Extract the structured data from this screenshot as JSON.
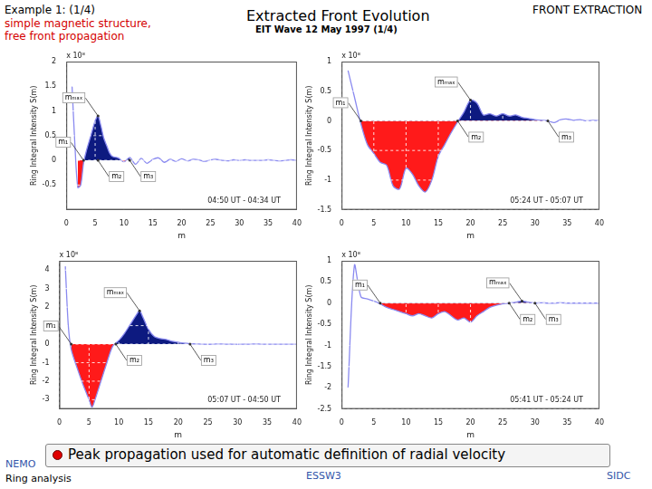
{
  "header": {
    "example": "Example 1: (1/4)",
    "subtitle_lines": [
      "simple magnetic structure,",
      "free front propagation"
    ],
    "title": "Extracted Front Evolution",
    "subtitle": "EIT Wave 12 May 1997 (1/4)",
    "section": "FRONT EXTRACTION"
  },
  "chart_data": [
    {
      "type": "line",
      "x_label": "m",
      "y_label": "Ring Integral Intensity S(m)",
      "y_multiplier": "x 10⁸",
      "time_label": "04:50 UT - 04:34 UT",
      "color": "#8a8af0",
      "grid": true,
      "x": [
        1,
        1.5,
        2,
        2.5,
        3,
        3.5,
        4,
        4.5,
        5,
        5.5,
        6,
        6.5,
        7,
        7.5,
        8,
        9,
        10,
        11,
        12,
        13,
        14,
        15,
        16,
        17,
        18,
        19,
        20,
        21,
        22,
        23,
        24,
        25,
        26,
        27,
        28,
        29,
        30,
        31,
        32,
        33,
        34,
        35,
        36,
        37,
        38,
        39,
        40
      ],
      "values": [
        1.5,
        0.3,
        -0.55,
        -0.5,
        -0.05,
        0.2,
        0.4,
        0.6,
        0.8,
        0.9,
        0.7,
        0.45,
        0.3,
        0.15,
        0.08,
        0.05,
        -0.03,
        0.06,
        -0.08,
        0.04,
        -0.06,
        0.02,
        0.05,
        -0.04,
        0.02,
        -0.02,
        0.03,
        -0.01,
        0.02,
        0.01,
        -0.02,
        0.01,
        0.02,
        0,
        -0.01,
        0.01,
        0,
        0.01,
        0,
        0,
        0,
        0.01,
        0,
        -0.01,
        0,
        0.01,
        0
      ],
      "xlim": [
        0,
        40
      ],
      "xticks": [
        0,
        5,
        10,
        15,
        20,
        25,
        30,
        35,
        40
      ],
      "ylim": [
        -1,
        2
      ],
      "yticks": [
        -0.5,
        0,
        0.5,
        1,
        1.5,
        2
      ],
      "front": {
        "range": [
          2,
          11
        ],
        "above_color": "#0d1a80",
        "below_color": "#ff1a1a"
      },
      "annotations": [
        {
          "text": "m₁",
          "x": 3,
          "y": 0
        },
        {
          "text": "m₂",
          "x": 5.5,
          "y": 0
        },
        {
          "text": "mₘₐₓ",
          "x": 5.5,
          "y": 0.9
        },
        {
          "text": "m₃",
          "x": 11,
          "y": 0
        }
      ]
    },
    {
      "type": "line",
      "x_label": "m",
      "y_label": "Ring Integral Intensity S(m)",
      "y_multiplier": "x 10⁸",
      "time_label": "05:24 UT - 05:07 UT",
      "color": "#8a8af0",
      "grid": true,
      "x": [
        1,
        2,
        3,
        4,
        5,
        6,
        7,
        8,
        9,
        10,
        11,
        12,
        13,
        14,
        15,
        16,
        17,
        18,
        19,
        20,
        21,
        22,
        23,
        24,
        25,
        26,
        27,
        28,
        29,
        30,
        31,
        32,
        33,
        34,
        35,
        36,
        37,
        38,
        39,
        40
      ],
      "values": [
        0.85,
        0.4,
        -0.05,
        -0.4,
        -0.55,
        -0.7,
        -0.75,
        -1.1,
        -1.15,
        -0.8,
        -0.9,
        -1.1,
        -1.2,
        -1.0,
        -0.6,
        -0.4,
        -0.2,
        -0.02,
        0.15,
        0.35,
        0.3,
        0.1,
        0.12,
        0.08,
        0.12,
        0.08,
        0.1,
        0.06,
        0.04,
        0.02,
        0.01,
        0,
        -0.03,
        0.02,
        0.03,
        0.01,
        0.02,
        0,
        0.01,
        0
      ],
      "xlim": [
        0,
        40
      ],
      "xticks": [
        0,
        5,
        10,
        15,
        20,
        25,
        30,
        35,
        40
      ],
      "ylim": [
        -1.5,
        1
      ],
      "yticks": [
        -1.5,
        -1,
        -0.5,
        0,
        0.5,
        1
      ],
      "front": {
        "range": [
          3,
          32
        ],
        "above_color": "#0d1a80",
        "below_color": "#ff1a1a"
      },
      "annotations": [
        {
          "text": "m₁",
          "x": 3,
          "y": 0
        },
        {
          "text": "m₂",
          "x": 18,
          "y": 0
        },
        {
          "text": "mₘₐₓ",
          "x": 20,
          "y": 0.35
        },
        {
          "text": "m₃",
          "x": 32,
          "y": 0
        }
      ]
    },
    {
      "type": "line",
      "x_label": "m",
      "y_label": "Ring Integral Intensity S(m)",
      "y_multiplier": "x 10⁸",
      "time_label": "05:07 UT - 04:50 UT",
      "color": "#8a8af0",
      "grid": true,
      "x": [
        1,
        1.5,
        2,
        3,
        4,
        5,
        5.5,
        6,
        7,
        8,
        9,
        10,
        11,
        12,
        13,
        13.5,
        14,
        15,
        16,
        17,
        18,
        19,
        20,
        21,
        22,
        23,
        24,
        25,
        26,
        27,
        28,
        29,
        30,
        31,
        32,
        33,
        34,
        35,
        36,
        37,
        38,
        39,
        40
      ],
      "values": [
        4.2,
        1.0,
        -0.3,
        -1.3,
        -2.2,
        -3.0,
        -3.4,
        -3.0,
        -2.0,
        -1.0,
        -0.1,
        0.2,
        0.6,
        1.1,
        1.6,
        1.8,
        1.5,
        0.8,
        0.4,
        0.3,
        0.25,
        0.15,
        0.1,
        0.05,
        0.02,
        0.01,
        0,
        -0.01,
        0,
        0.01,
        0,
        0,
        -0.01,
        0,
        0,
        0.01,
        0,
        0,
        0,
        0,
        0,
        0,
        0
      ],
      "xlim": [
        0,
        40
      ],
      "xticks": [
        0,
        5,
        10,
        15,
        20,
        25,
        30,
        35,
        40
      ],
      "ylim": [
        -3.5,
        4.5
      ],
      "yticks": [
        -3,
        -2,
        -1,
        0,
        1,
        2,
        3,
        4
      ],
      "front": {
        "range": [
          2,
          22
        ],
        "above_color": "#0d1a80",
        "below_color": "#ff1a1a"
      },
      "annotations": [
        {
          "text": "m₁",
          "x": 2,
          "y": 0
        },
        {
          "text": "m₂",
          "x": 9.5,
          "y": 0
        },
        {
          "text": "mₘₐₓ",
          "x": 13.5,
          "y": 1.8
        },
        {
          "text": "m₃",
          "x": 22,
          "y": 0
        }
      ]
    },
    {
      "type": "line",
      "x_label": "m",
      "y_label": "Ring Integral Intensity S(m)",
      "y_multiplier": "x 10⁸",
      "time_label": "05:41 UT - 05:24 UT",
      "color": "#8a8af0",
      "grid": true,
      "x": [
        1,
        2,
        3,
        4,
        5,
        6,
        7,
        8,
        9,
        10,
        11,
        12,
        13,
        14,
        15,
        16,
        17,
        18,
        19,
        20,
        21,
        22,
        23,
        24,
        25,
        26,
        27,
        28,
        29,
        30,
        31,
        32,
        33,
        34,
        35,
        36,
        37,
        38,
        39,
        40
      ],
      "values": [
        -2.0,
        0.9,
        0.15,
        0.1,
        0.05,
        -0.02,
        -0.1,
        -0.15,
        -0.2,
        -0.25,
        -0.3,
        -0.25,
        -0.3,
        -0.35,
        -0.25,
        -0.2,
        -0.3,
        -0.4,
        -0.35,
        -0.45,
        -0.3,
        -0.2,
        -0.1,
        -0.05,
        -0.02,
        0,
        0.02,
        0.05,
        0.02,
        0,
        0.01,
        0,
        0,
        0.01,
        0,
        0,
        0,
        0,
        0,
        0
      ],
      "xlim": [
        0,
        40
      ],
      "xticks": [
        0,
        5,
        10,
        15,
        20,
        25,
        30,
        35,
        40
      ],
      "ylim": [
        -2.5,
        1
      ],
      "yticks": [
        -2.5,
        -2,
        -1.5,
        -1,
        -0.5,
        0,
        0.5,
        1
      ],
      "front": {
        "range": [
          6,
          30
        ],
        "above_color": "#0d1a80",
        "below_color": "#ff1a1a"
      },
      "annotations": [
        {
          "text": "m₁",
          "x": 6,
          "y": 0
        },
        {
          "text": "m₂",
          "x": 26,
          "y": 0
        },
        {
          "text": "mₘₐₓ",
          "x": 28,
          "y": 0.05
        },
        {
          "text": "m₃",
          "x": 30,
          "y": 0
        }
      ]
    }
  ],
  "banner": "Peak propagation used for automatic definition of  radial velocity",
  "footer": {
    "left_top": "NEMO",
    "left_bottom": "Ring analysis",
    "center": "ESSW3",
    "right": "SIDC"
  }
}
